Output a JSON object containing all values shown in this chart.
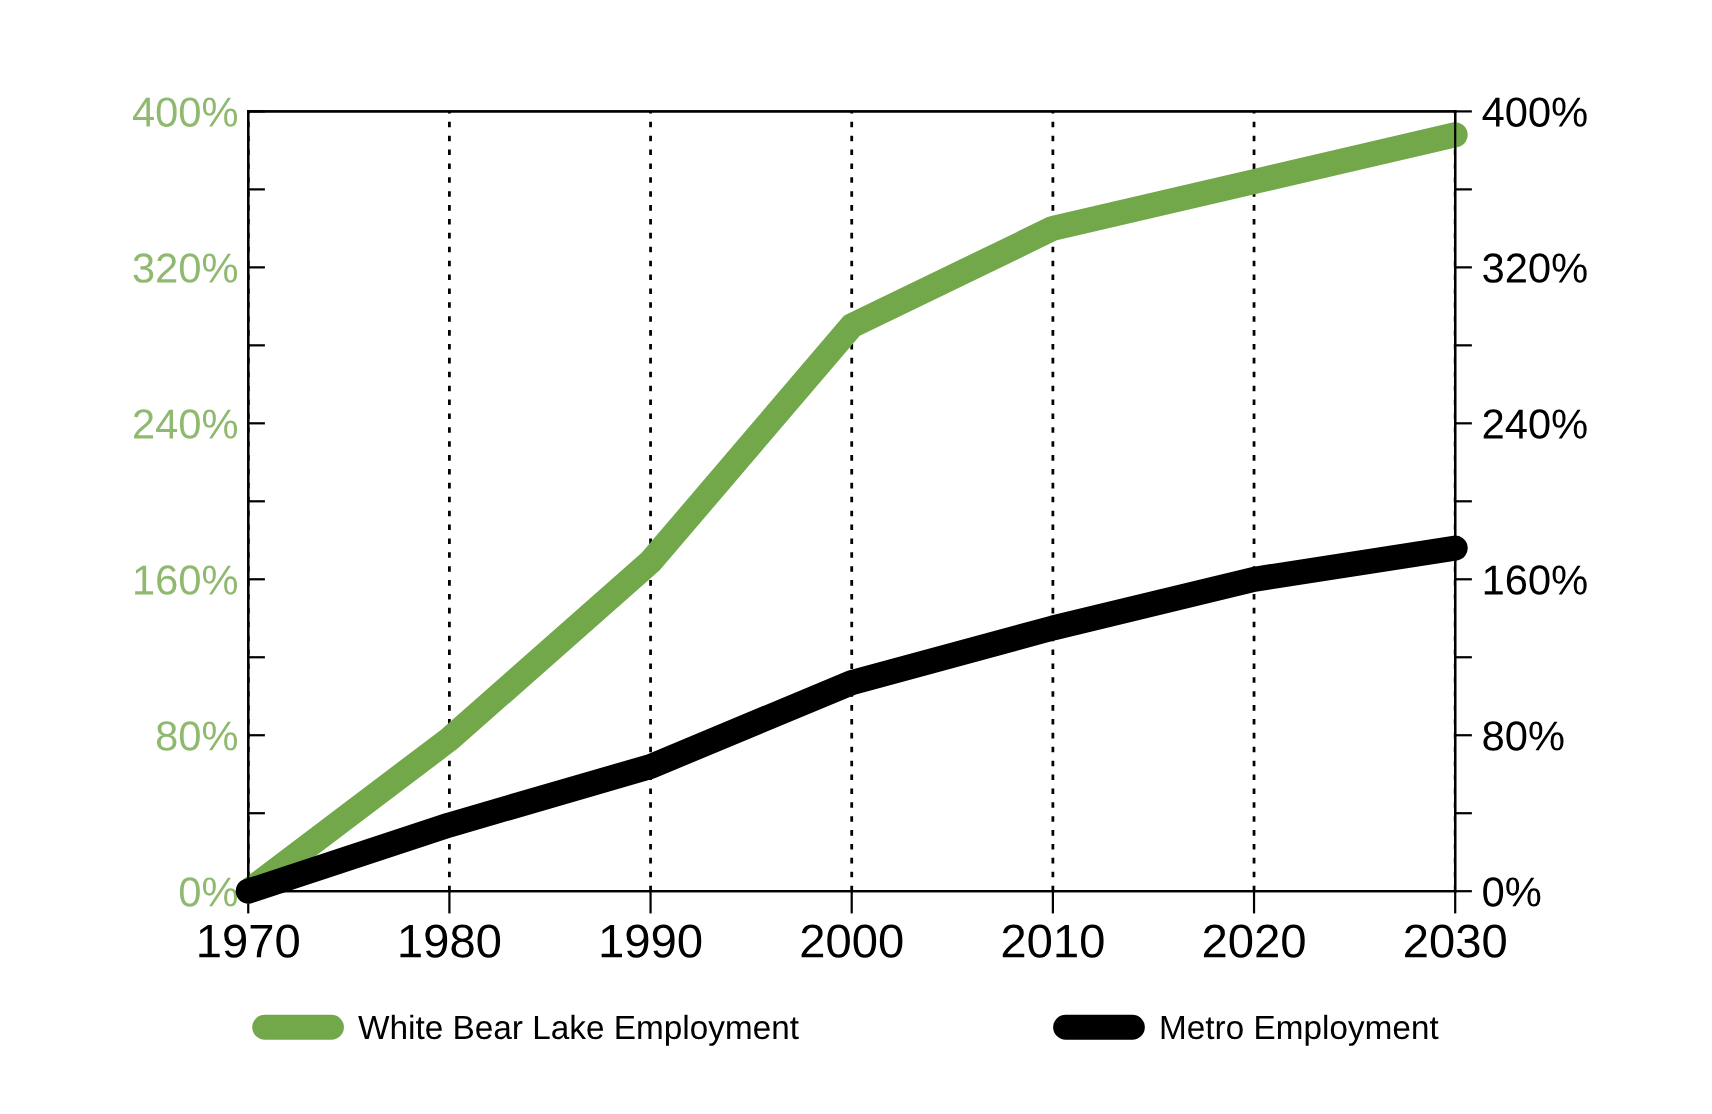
{
  "chart_data": {
    "type": "line",
    "x": [
      1970,
      1980,
      1990,
      2000,
      2010,
      2020,
      2030
    ],
    "series": [
      {
        "name": "White Bear Lake Employment",
        "color": "#72a84a",
        "values": [
          0,
          78,
          169,
          290,
          340,
          364,
          388
        ]
      },
      {
        "name": "Metro Employment",
        "color": "#000000",
        "values": [
          0,
          34,
          64,
          107,
          135,
          160,
          176
        ]
      }
    ],
    "xlim": [
      1970,
      2030
    ],
    "xticks": [
      1970,
      1980,
      1990,
      2000,
      2010,
      2020,
      2030
    ],
    "ylim": [
      0,
      400
    ],
    "yticks": [
      {
        "value": 0,
        "label": "0%"
      },
      {
        "value": 40,
        "label": null
      },
      {
        "value": 80,
        "label": "80%"
      },
      {
        "value": 120,
        "label": null
      },
      {
        "value": 160,
        "label": "160%"
      },
      {
        "value": 200,
        "label": null
      },
      {
        "value": 240,
        "label": "240%"
      },
      {
        "value": 280,
        "label": null
      },
      {
        "value": 320,
        "label": "320%"
      },
      {
        "value": 360,
        "label": null
      },
      {
        "value": 400,
        "label": "400%"
      }
    ],
    "y2lim": [
      0,
      400
    ],
    "y2ticks": [
      {
        "value": 0,
        "label": "0%"
      },
      {
        "value": 40,
        "label": null
      },
      {
        "value": 80,
        "label": "80%"
      },
      {
        "value": 120,
        "label": null
      },
      {
        "value": 160,
        "label": "160%"
      },
      {
        "value": 200,
        "label": null
      },
      {
        "value": 240,
        "label": "240%"
      },
      {
        "value": 280,
        "label": null
      },
      {
        "value": 320,
        "label": "320%"
      },
      {
        "value": 360,
        "label": null
      },
      {
        "value": 400,
        "label": "400%"
      }
    ],
    "grid": "x",
    "line_style": "solid",
    "legend": "bottom"
  }
}
